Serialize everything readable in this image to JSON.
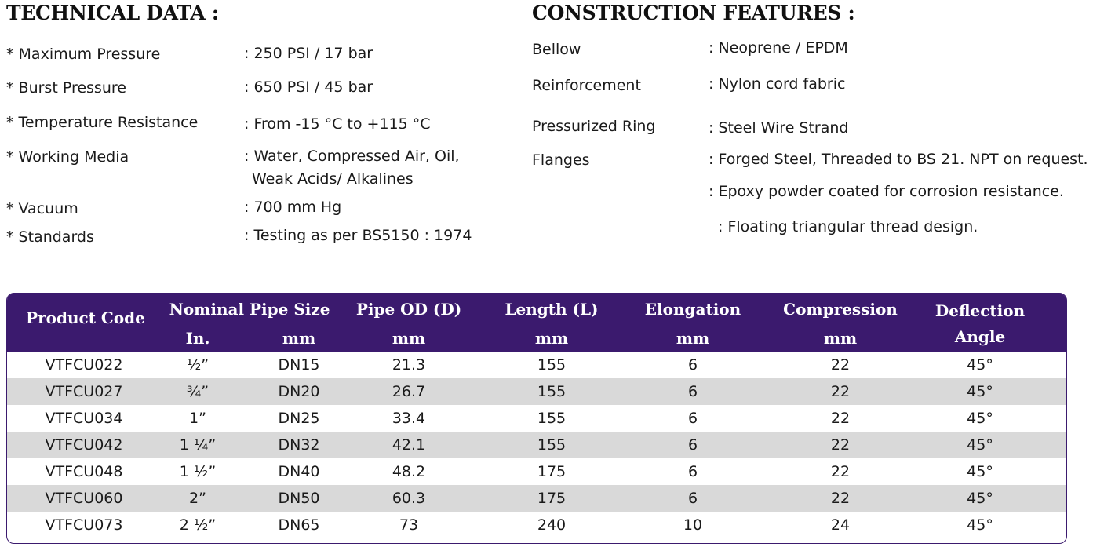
{
  "technical": {
    "heading": "TECHNICAL DATA :",
    "items": [
      {
        "label": "* Maximum Pressure",
        "value": ": 250 PSI / 17 bar"
      },
      {
        "label": "* Burst Pressure",
        "value": ": 650 PSI / 45 bar"
      },
      {
        "label": "* Temperature Resistance",
        "value": ": From -15 °C to +115 °C"
      },
      {
        "label": "* Working Media",
        "value": ": Water, Compressed Air, Oil,",
        "value2": "Weak Acids/ Alkalines"
      },
      {
        "label": "* Vacuum",
        "value": ": 700 mm Hg"
      },
      {
        "label": "* Standards",
        "value": ": Testing as per BS5150 : 1974"
      }
    ]
  },
  "construction": {
    "heading": "CONSTRUCTION FEATURES :",
    "items": [
      {
        "label": "Bellow",
        "value": ": Neoprene / EPDM"
      },
      {
        "label": "Reinforcement",
        "value": ": Nylon cord fabric"
      },
      {
        "label": "Pressurized Ring",
        "value": ": Steel Wire Strand"
      },
      {
        "label": "Flanges",
        "value": ": Forged Steel, Threaded to BS 21. NPT on request."
      }
    ],
    "extra": [
      ": Epoxy powder coated for corrosion resistance.",
      ": Floating triangular thread design."
    ]
  },
  "table": {
    "header_color": "#3b1a6e",
    "stripe_color": "#d9d9d9",
    "headers": {
      "product_code": "Product Code",
      "nominal": "Nominal Pipe Size",
      "nominal_in": "In.",
      "nominal_mm": "mm",
      "pipe_od": "Pipe OD (D)",
      "pipe_od_unit": "mm",
      "length": "Length (L)",
      "length_unit": "mm",
      "elongation": "Elongation",
      "elongation_unit": "mm",
      "compression": "Compression",
      "compression_unit": "mm",
      "deflection": "Deflection",
      "deflection_unit": "Angle"
    },
    "rows": [
      [
        "VTFCU022",
        "½”",
        "DN15",
        "21.3",
        "155",
        "6",
        "22",
        "45°"
      ],
      [
        "VTFCU027",
        "¾”",
        "DN20",
        "26.7",
        "155",
        "6",
        "22",
        "45°"
      ],
      [
        "VTFCU034",
        "1”",
        "DN25",
        "33.4",
        "155",
        "6",
        "22",
        "45°"
      ],
      [
        "VTFCU042",
        "1 ¼”",
        "DN32",
        "42.1",
        "155",
        "6",
        "22",
        "45°"
      ],
      [
        "VTFCU048",
        "1 ½”",
        "DN40",
        "48.2",
        "175",
        "6",
        "22",
        "45°"
      ],
      [
        "VTFCU060",
        "2”",
        "DN50",
        "60.3",
        "175",
        "6",
        "22",
        "45°"
      ],
      [
        "VTFCU073",
        "2 ½”",
        "DN65",
        "73",
        "240",
        "10",
        "24",
        "45°"
      ]
    ]
  }
}
